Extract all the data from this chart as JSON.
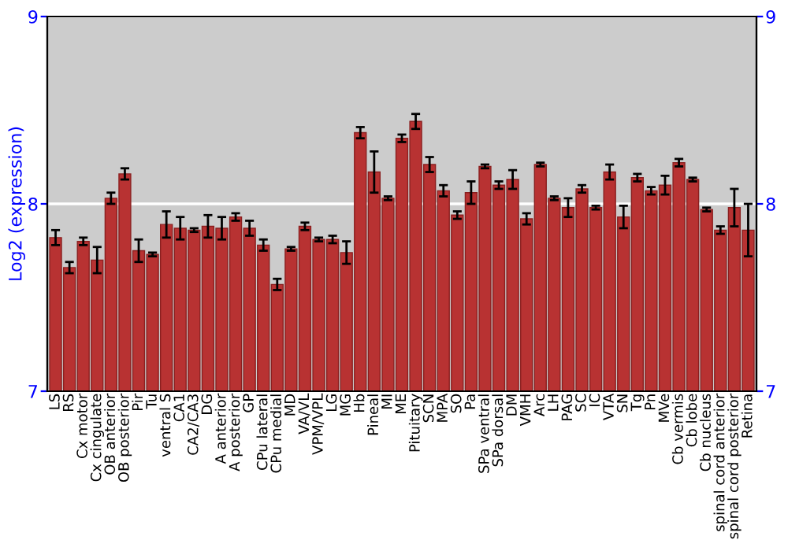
{
  "chart_data": {
    "type": "bar",
    "ylabel": "Log2 (expression)",
    "categories": [
      "LS",
      "RS",
      "Cx motor",
      "Cx cingulate",
      "OB anterior",
      "OB posterior",
      "Pir",
      "Tu",
      "ventral S",
      "CA1",
      "CA2/CA3",
      "DG",
      "A anterior",
      "A posterior",
      "GP",
      "CPu lateral",
      "CPu medial",
      "MD",
      "VA/VL",
      "VPM/VPL",
      "LG",
      "MG",
      "Hb",
      "Pineal",
      "MI",
      "ME",
      "Pituitary",
      "SCN",
      "MPA",
      "SO",
      "Pa",
      "SPa ventral",
      "SPa dorsal",
      "DM",
      "VMH",
      "Arc",
      "LH",
      "PAG",
      "SC",
      "IC",
      "VTA",
      "SN",
      "Tg",
      "Pn",
      "MVe",
      "Cb vermis",
      "Cb lobe",
      "Cb nucleus",
      "spinal cord anterior",
      "spinal cord posterior",
      "Retina"
    ],
    "values": [
      7.82,
      7.66,
      7.8,
      7.7,
      8.03,
      8.16,
      7.75,
      7.73,
      7.89,
      7.87,
      7.86,
      7.88,
      7.87,
      7.93,
      7.87,
      7.78,
      7.57,
      7.76,
      7.88,
      7.81,
      7.81,
      7.74,
      8.38,
      8.17,
      8.03,
      8.35,
      8.44,
      8.21,
      8.07,
      7.94,
      8.06,
      8.2,
      8.1,
      8.13,
      7.92,
      8.21,
      8.03,
      7.98,
      8.08,
      7.98,
      8.17,
      7.93,
      8.14,
      8.07,
      8.1,
      8.22,
      8.13,
      7.97,
      7.86,
      7.98,
      7.86
    ],
    "errors": [
      0.04,
      0.03,
      0.02,
      0.07,
      0.03,
      0.03,
      0.06,
      0.01,
      0.07,
      0.06,
      0.01,
      0.06,
      0.06,
      0.02,
      0.04,
      0.03,
      0.03,
      0.01,
      0.02,
      0.01,
      0.02,
      0.06,
      0.03,
      0.11,
      0.01,
      0.02,
      0.04,
      0.04,
      0.03,
      0.02,
      0.06,
      0.01,
      0.02,
      0.05,
      0.03,
      0.01,
      0.01,
      0.05,
      0.02,
      0.01,
      0.04,
      0.06,
      0.02,
      0.02,
      0.05,
      0.02,
      0.01,
      0.01,
      0.02,
      0.1,
      0.14
    ],
    "color": "#b83232",
    "ylim": [
      7,
      9
    ],
    "yticks": [
      7,
      8,
      9
    ],
    "y2lim": [
      7,
      9
    ],
    "y2ticks": [
      7,
      8,
      9
    ],
    "grid": "y"
  }
}
